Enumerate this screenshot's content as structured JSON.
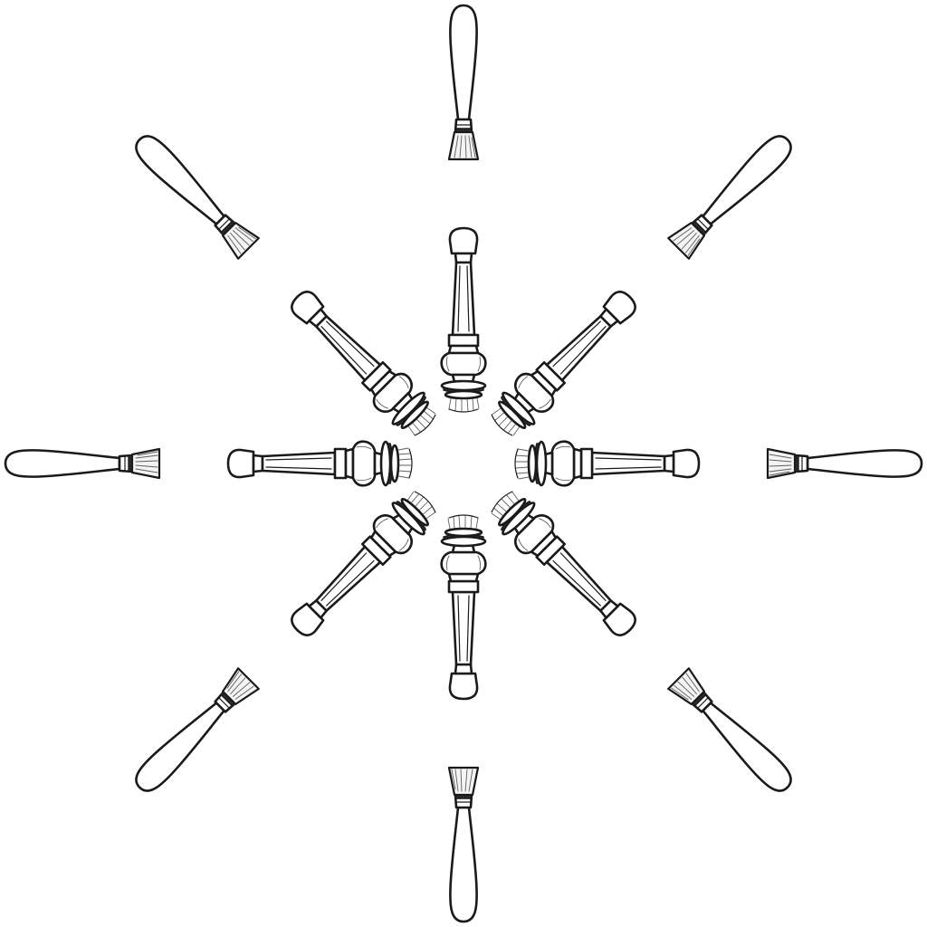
{
  "drawing": {
    "style": "black ink line art on white",
    "ink_color": "#1a1a1a",
    "background_color": "#ffffff",
    "outer_ring": {
      "item": "brush-icon",
      "count": 8
    },
    "inner_ring": {
      "item": "fluted-column-icon",
      "count": 8
    }
  }
}
